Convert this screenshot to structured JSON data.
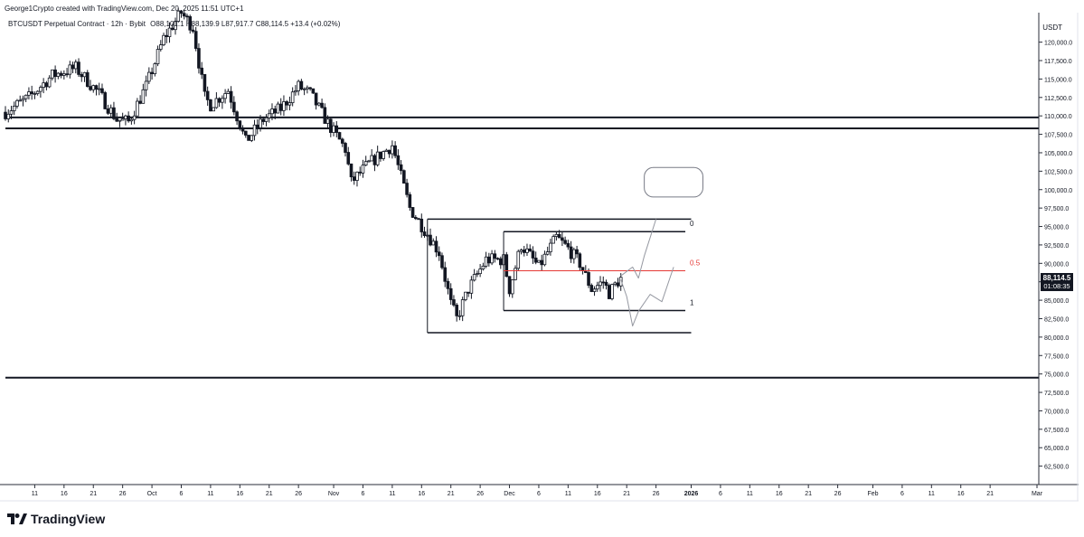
{
  "header": {
    "author_line": "George1Crypto created with TradingView.com, Dec 20, 2025 11:51 UTC+1",
    "symbol": "BTCUSDT Perpetual Contract · 12h · Bybit",
    "ohlc": "O88,101.1  H88,139.9  L87,917.7  C88,114.5  +13.4 (+0.02%)"
  },
  "price_axis": {
    "currency": "USDT",
    "ticks": [
      "120,000.0",
      "117,500.0",
      "115,000.0",
      "112,500.0",
      "110,000.0",
      "107,500.0",
      "105,000.0",
      "102,500.0",
      "100,000.0",
      "97,500.0",
      "95,000.0",
      "92,500.0",
      "90,000.0",
      "87,500.0",
      "85,000.0",
      "82,500.0",
      "80,000.0",
      "77,500.0",
      "75,000.0",
      "72,500.0",
      "70,000.0",
      "67,500.0",
      "65,000.0",
      "62,500.0"
    ]
  },
  "price_tag": {
    "price": "88,114.5",
    "countdown": "01:08:35"
  },
  "time_axis": {
    "labels": [
      "11",
      "16",
      "21",
      "26",
      "Oct",
      "6",
      "11",
      "16",
      "21",
      "26",
      "Nov",
      "6",
      "11",
      "16",
      "21",
      "26",
      "Dec",
      "6",
      "11",
      "16",
      "21",
      "26",
      "2026",
      "6",
      "11",
      "16",
      "21",
      "26",
      "Feb",
      "6",
      "11",
      "16",
      "21",
      "Mar"
    ]
  },
  "fib_labels": {
    "top": "0",
    "mid": "0.5",
    "bottom": "1"
  },
  "logo_text": "TradingView",
  "colors": {
    "up": "#131722",
    "down": "#131722",
    "fib_mid": "#e53935",
    "price_tag_bg": "#131722"
  },
  "chart_data": {
    "type": "candlestick",
    "title": "BTCUSDT Perpetual Contract · 12h · Bybit",
    "timeframe": "12h",
    "ylim": [
      60000,
      124000
    ],
    "x_range": [
      "2025-09-06",
      "2026-03-01"
    ],
    "last_close": 88114.5,
    "horizontal_levels": [
      109800,
      108300,
      74500
    ],
    "ranges": [
      {
        "name": "outer",
        "top": 96000,
        "bottom": 80600,
        "start": "2025-11-17",
        "end": "2026-01-01"
      },
      {
        "name": "fib",
        "top": 94300,
        "bottom": 83600,
        "start": "2025-11-30",
        "end": "2025-12-31",
        "levels": {
          "0": 94300,
          "0.5": 89000,
          "1": 83600
        }
      }
    ],
    "projection_paths": [
      [
        [
          "2025-12-20",
          88300
        ],
        [
          "2025-12-22",
          89500
        ],
        [
          "2025-12-23",
          88000
        ],
        [
          "2025-12-24",
          91000
        ],
        [
          "2025-12-25",
          93500
        ],
        [
          "2025-12-26",
          96000
        ]
      ],
      [
        [
          "2025-12-20",
          87800
        ],
        [
          "2025-12-21",
          85500
        ],
        [
          "2025-12-22",
          81500
        ],
        [
          "2025-12-23",
          83500
        ],
        [
          "2025-12-25",
          85800
        ],
        [
          "2025-12-27",
          84800
        ],
        [
          "2025-12-29",
          89500
        ]
      ]
    ],
    "note_box": {
      "start": "2025-12-24",
      "end": "2026-01-03",
      "top": 103000,
      "bottom": 99000
    },
    "close_path": [
      [
        "2025-09-06",
        110500
      ],
      [
        "2025-09-10",
        112500
      ],
      [
        "2025-09-14",
        115500
      ],
      [
        "2025-09-18",
        116500
      ],
      [
        "2025-09-22",
        113000
      ],
      [
        "2025-09-25",
        109500
      ],
      [
        "2025-09-27",
        109200
      ],
      [
        "2025-09-30",
        114000
      ],
      [
        "2025-10-03",
        120500
      ],
      [
        "2025-10-06",
        124000
      ],
      [
        "2025-10-08",
        122000
      ],
      [
        "2025-10-10",
        112500
      ],
      [
        "2025-10-11",
        111500
      ],
      [
        "2025-10-14",
        113500
      ],
      [
        "2025-10-17",
        106500
      ],
      [
        "2025-10-20",
        109500
      ],
      [
        "2025-10-23",
        111000
      ],
      [
        "2025-10-26",
        114000
      ],
      [
        "2025-10-28",
        113000
      ],
      [
        "2025-10-31",
        109000
      ],
      [
        "2025-11-03",
        105500
      ],
      [
        "2025-11-04",
        101000
      ],
      [
        "2025-11-07",
        103500
      ],
      [
        "2025-11-11",
        106000
      ],
      [
        "2025-11-14",
        97500
      ],
      [
        "2025-11-17",
        94000
      ],
      [
        "2025-11-19",
        91500
      ],
      [
        "2025-11-21",
        84500
      ],
      [
        "2025-11-22",
        82500
      ],
      [
        "2025-11-24",
        86500
      ],
      [
        "2025-11-27",
        90500
      ],
      [
        "2025-11-30",
        90500
      ],
      [
        "2025-12-01",
        86500
      ],
      [
        "2025-12-03",
        92500
      ],
      [
        "2025-12-06",
        89500
      ],
      [
        "2025-12-09",
        93500
      ],
      [
        "2025-12-11",
        92000
      ],
      [
        "2025-12-13",
        90000
      ],
      [
        "2025-12-15",
        86500
      ],
      [
        "2025-12-17",
        87500
      ],
      [
        "2025-12-18",
        86000
      ],
      [
        "2025-12-20",
        88114.5
      ]
    ]
  }
}
